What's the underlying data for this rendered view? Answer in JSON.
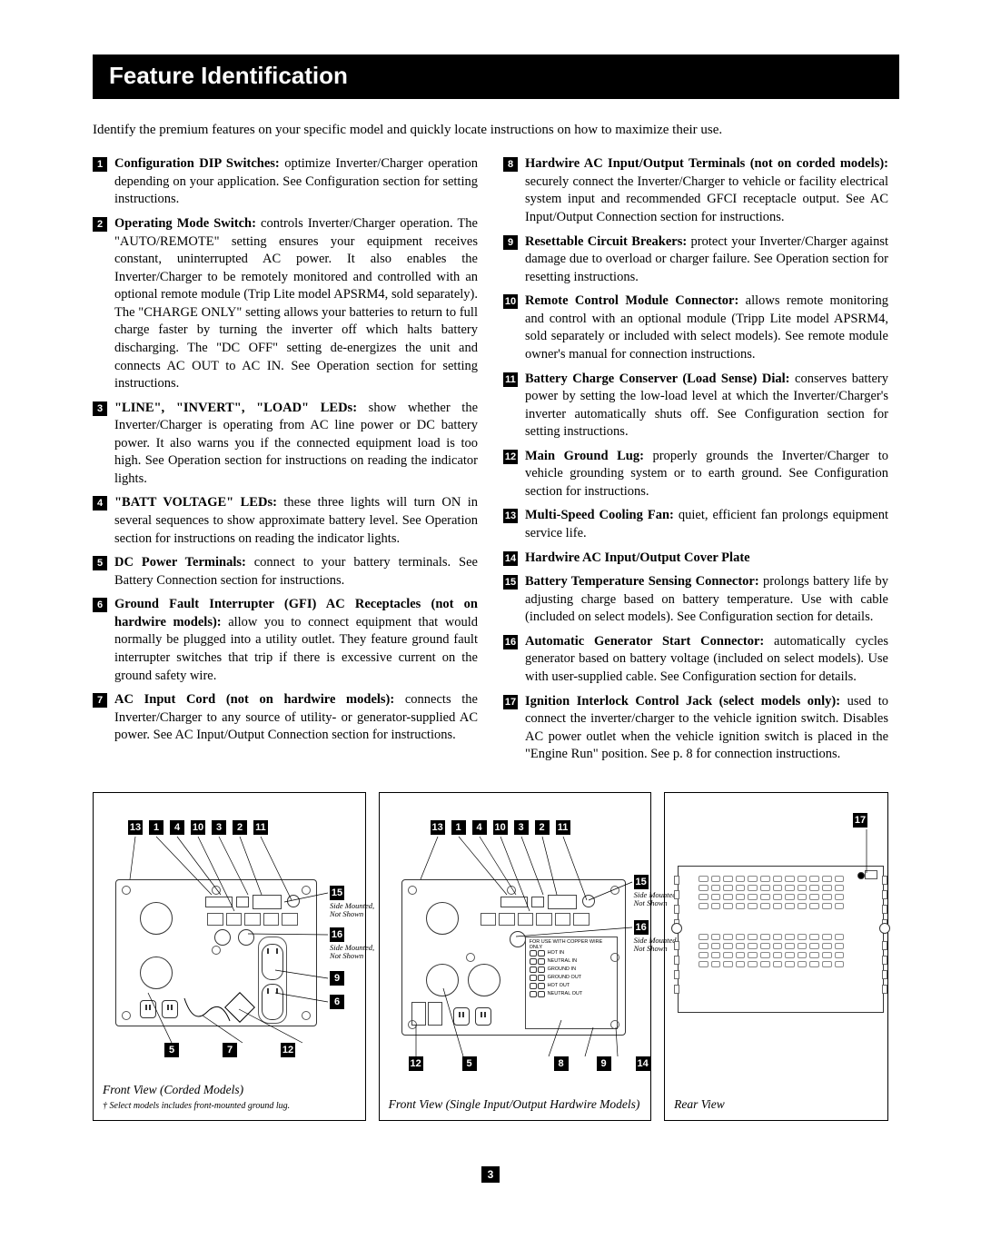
{
  "header": "Feature Identification",
  "intro": "Identify the premium features on your specific model and quickly locate instructions on how to maximize their use.",
  "features_left": [
    {
      "n": "1",
      "title": "Configuration DIP Switches:",
      "body": " optimize Inverter/Charger operation depending on your application. See Configuration section for setting instructions."
    },
    {
      "n": "2",
      "title": "Operating Mode Switch:",
      "body": " controls Inverter/Charger operation. The \"AUTO/REMOTE\" setting ensures your equipment receives constant, uninterrupted AC power. It also enables the Inverter/Charger to be remotely monitored and controlled with an optional remote module (Trip Lite model APSRM4, sold separately). The \"CHARGE ONLY\" setting allows your batteries to return to full charge faster by turning the inverter off which halts battery discharging. The \"DC OFF\" setting de-energizes the unit and connects AC OUT to AC IN. See Operation section for setting instructions."
    },
    {
      "n": "3",
      "title": "\"LINE\", \"INVERT\", \"LOAD\" LEDs:",
      "body": " show whether the Inverter/Charger is operating from AC line power or DC battery power. It also warns you if the connected equipment load is too high. See Operation section for instructions on reading the indicator lights."
    },
    {
      "n": "4",
      "title": "\"BATT VOLTAGE\" LEDs:",
      "body": " these three lights will turn ON in several sequences to show approximate battery level. See Operation section for instructions on reading the indicator lights."
    },
    {
      "n": "5",
      "title": "DC Power Terminals:",
      "body": " connect to your battery terminals. See Battery Connection section for instructions."
    },
    {
      "n": "6",
      "title": "Ground Fault Interrupter (GFI) AC Receptacles (not on hardwire models):",
      "body": " allow you to connect equipment that would normally be plugged into a utility outlet. They feature ground fault interrupter switches that trip if there is excessive current on the ground safety wire."
    },
    {
      "n": "7",
      "title": "AC Input Cord (not on hardwire models):",
      "body": " connects the Inverter/Charger to any source of utility- or generator-supplied AC power. See AC Input/Output Connection section for instructions."
    }
  ],
  "features_right": [
    {
      "n": "8",
      "title": "Hardwire AC Input/Output Terminals (not on corded models):",
      "body": " securely connect the Inverter/Charger to vehicle or facility electrical system input and recommended GFCI receptacle output. See AC Input/Output Connection section for instructions."
    },
    {
      "n": "9",
      "title": "Resettable Circuit Breakers:",
      "body": " protect your Inverter/Charger against damage due to overload or charger failure. See Operation section for resetting instructions."
    },
    {
      "n": "10",
      "title": "Remote Control Module Connector:",
      "body": " allows remote monitoring and control with an optional module (Tripp Lite model APSRM4, sold separately or included with select models). See remote module owner's manual for connection instructions."
    },
    {
      "n": "11",
      "title": "Battery Charge Conserver (Load Sense) Dial:",
      "body": " conserves battery power by setting the low-load level at which the Inverter/Charger's inverter automatically shuts off. See Configuration section for setting instructions."
    },
    {
      "n": "12",
      "title": "Main Ground Lug:",
      "body": " properly grounds the Inverter/Charger to vehicle grounding system or to earth ground. See Configuration section for instructions."
    },
    {
      "n": "13",
      "title": "Multi-Speed Cooling Fan:",
      "body": " quiet, efficient fan prolongs equipment service life."
    },
    {
      "n": "14",
      "title": "Hardwire AC Input/Output Cover Plate",
      "body": ""
    },
    {
      "n": "15",
      "title": "Battery Temperature Sensing Connector:",
      "body": " prolongs battery life by adjusting charge based on battery temperature. Use with cable (included on select models). See Configuration section for details."
    },
    {
      "n": "16",
      "title": "Automatic Generator Start Connector:",
      "body": " automatically cycles generator based on battery voltage (included on select models). Use with user-supplied cable. See Configuration section for details."
    },
    {
      "n": "17",
      "title": "Ignition Interlock Control Jack (select models only):",
      "body": " used to connect the inverter/charger to the vehicle ignition switch. Disables AC power outlet when the vehicle ignition switch is placed in the \"Engine Run\" position. See p. 8 for connection instructions."
    }
  ],
  "diag1": {
    "top_nums": [
      "13",
      "1",
      "4",
      "10",
      "3",
      "2",
      "11"
    ],
    "side_nums_right": [
      "15",
      "16",
      "9",
      "6"
    ],
    "bottom_nums": [
      "5",
      "7",
      "12"
    ],
    "caption": "Front View (Corded Models)",
    "subcap": "† Select models includes front-mounted ground lug.",
    "side_a": "Side Mounted,\nNot Shown",
    "side_b": "Side Mounted,\nNot Shown"
  },
  "diag2": {
    "top_nums": [
      "13",
      "1",
      "4",
      "10",
      "3",
      "2",
      "11"
    ],
    "side_nums_right": [
      "15",
      "16"
    ],
    "bottom_nums": [
      "12",
      "5",
      "8",
      "9",
      "14"
    ],
    "caption": "Front View (Single Input/Output Hardwire Models)",
    "side_a": "Side Mounted,\nNot Shown",
    "side_b": "Side Mounted,\nNot Shown",
    "term_title": "FOR USE WITH COPPER WIRE ONLY",
    "terms": [
      "HOT   IN",
      "NEUTRAL  IN",
      "GROUND  IN",
      "GROUND  OUT",
      "HOT   OUT",
      "NEUTRAL  OUT"
    ]
  },
  "diag3": {
    "top_nums": [
      "17"
    ],
    "caption": "Rear View"
  },
  "page": "3"
}
